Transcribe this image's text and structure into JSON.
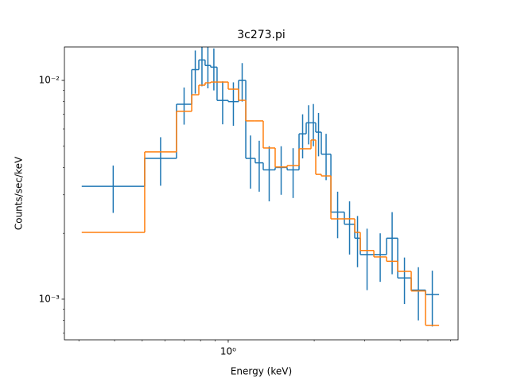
{
  "chart_data": {
    "type": "step",
    "title": "3c273.pi",
    "x_label": "Energy (keV)",
    "y_label": "Counts/sec/keV",
    "xscale": "log",
    "yscale": "log",
    "xlim": [
      0.267,
      6.38
    ],
    "ylim": [
      0.000652,
      0.01422
    ],
    "xticks": [
      {
        "value": 1,
        "label": "10⁰"
      }
    ],
    "yticks": [
      {
        "value": 0.001,
        "label": "10⁻³"
      },
      {
        "value": 0.01,
        "label": "10⁻²"
      }
    ],
    "xminor_ticks": [
      0.3,
      0.4,
      0.5,
      0.6,
      0.7,
      0.8,
      0.9,
      2,
      3,
      4,
      5,
      6
    ],
    "yminor_ticks": [
      0.0007,
      0.0008,
      0.0009,
      0.002,
      0.003,
      0.004,
      0.005,
      0.006,
      0.007,
      0.008,
      0.009
    ],
    "bin_edges": [
      0.307,
      0.51,
      0.659,
      0.745,
      0.789,
      0.83,
      0.868,
      0.914,
      1.0,
      1.087,
      1.152,
      1.243,
      1.326,
      1.46,
      1.608,
      1.77,
      1.875,
      1.949,
      2.025,
      2.118,
      2.288,
      2.551,
      2.773,
      2.9,
      3.235,
      3.584,
      3.921,
      4.372,
      4.907,
      5.473
    ],
    "series": [
      {
        "color": "#1f77b4",
        "values": [
          0.00328,
          0.0044,
          0.00778,
          0.0112,
          0.0124,
          0.0117,
          0.0115,
          0.0081,
          0.008,
          0.01,
          0.0044,
          0.0042,
          0.0039,
          0.004,
          0.0039,
          0.0057,
          0.0064,
          0.0064,
          0.0058,
          0.0046,
          0.0025,
          0.0022,
          0.0019,
          0.0016,
          0.0016,
          0.0019,
          0.00125,
          0.0011,
          0.00105
        ],
        "errors": [
          0.0008,
          0.0011,
          0.0015,
          0.0025,
          0.003,
          0.0025,
          0.0025,
          0.0018,
          0.0018,
          0.002,
          0.0012,
          0.0011,
          0.0011,
          0.001,
          0.001,
          0.0013,
          0.0013,
          0.0014,
          0.0013,
          0.0011,
          0.0006,
          0.0006,
          0.0005,
          0.0005,
          0.0004,
          0.0006,
          0.0003,
          0.0003,
          0.0003
        ]
      },
      {
        "color": "#ff7f0e",
        "values": [
          0.00202,
          0.00471,
          0.00722,
          0.0086,
          0.00951,
          0.00975,
          0.00983,
          0.00983,
          0.00912,
          0.00811,
          0.00653,
          0.00653,
          0.00491,
          0.00402,
          0.00408,
          0.00487,
          0.00487,
          0.00534,
          0.00372,
          0.00366,
          0.00233,
          0.00233,
          0.00202,
          0.00167,
          0.00156,
          0.00149,
          0.00134,
          0.00109,
          0.00076
        ]
      }
    ]
  }
}
